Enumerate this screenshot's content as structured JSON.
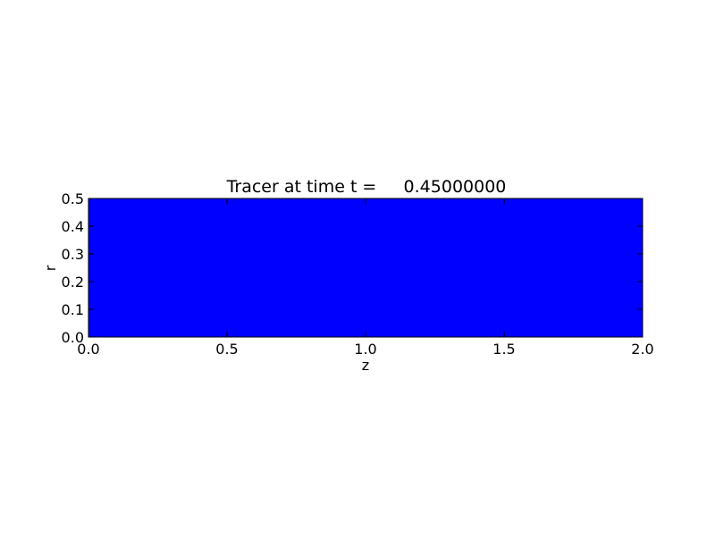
{
  "chart_data": {
    "type": "heatmap",
    "title": "Tracer at time t =     0.45000000",
    "xlabel": "z",
    "ylabel": "r",
    "xlim": [
      0.0,
      2.0
    ],
    "ylim": [
      0.0,
      0.5
    ],
    "x_ticks": [
      0.0,
      0.5,
      1.0,
      1.5,
      2.0
    ],
    "x_tick_labels": [
      "0.0",
      "0.5",
      "1.0",
      "1.5",
      "2.0"
    ],
    "y_ticks": [
      0.0,
      0.1,
      0.2,
      0.3,
      0.4,
      0.5
    ],
    "y_tick_labels": [
      "0.0",
      "0.1",
      "0.2",
      "0.3",
      "0.4",
      "0.5"
    ],
    "fill_color": "#0000ff",
    "grid": false,
    "legend": "none"
  }
}
